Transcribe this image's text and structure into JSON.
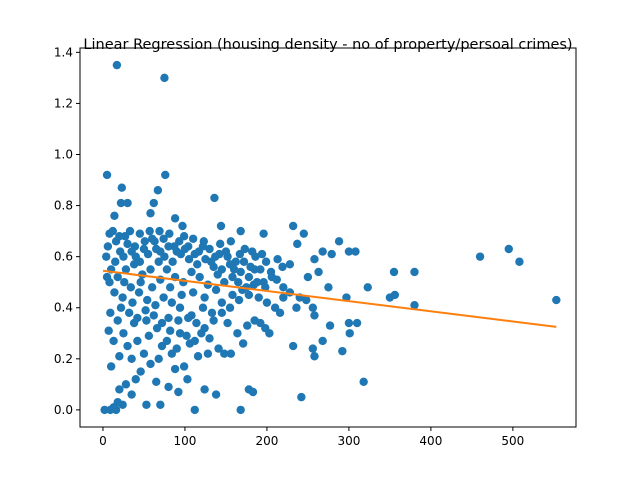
{
  "chart_data": {
    "type": "scatter",
    "title": "Linear Regression (housing density - no of property/persoal crimes)",
    "xlabel": "",
    "ylabel": "",
    "xlim": [
      -28,
      577
    ],
    "ylim": [
      -0.067,
      1.417
    ],
    "x_ticks": [
      0,
      100,
      200,
      300,
      400,
      500
    ],
    "y_ticks": [
      0.0,
      0.2,
      0.4,
      0.6,
      0.8,
      1.0,
      1.2,
      1.4
    ],
    "x_tick_labels": [
      "0",
      "100",
      "200",
      "300",
      "400",
      "500"
    ],
    "y_tick_labels": [
      "0.0",
      "0.2",
      "0.4",
      "0.6",
      "0.8",
      "1.0",
      "1.2",
      "1.4"
    ],
    "grid": false,
    "colors": {
      "points": "#1f77b4",
      "line": "#ff7f0e"
    },
    "series": [
      {
        "kind": "scatter",
        "points": [
          [
            17,
            1.35
          ],
          [
            75,
            1.3
          ],
          [
            5,
            0.92
          ],
          [
            76,
            0.92
          ],
          [
            23,
            0.87
          ],
          [
            67,
            0.86
          ],
          [
            136,
            0.83
          ],
          [
            22,
            0.81
          ],
          [
            30,
            0.81
          ],
          [
            62,
            0.81
          ],
          [
            58,
            0.77
          ],
          [
            14,
            0.76
          ],
          [
            88,
            0.75
          ],
          [
            97,
            0.72
          ],
          [
            144,
            0.72
          ],
          [
            232,
            0.72
          ],
          [
            168,
            0.7
          ],
          [
            245,
            0.69
          ],
          [
            196,
            0.69
          ],
          [
            237,
            0.65
          ],
          [
            288,
            0.66
          ],
          [
            300,
            0.62
          ],
          [
            308,
            0.62
          ],
          [
            279,
            0.61
          ],
          [
            268,
            0.62
          ],
          [
            258,
            0.59
          ],
          [
            213,
            0.59
          ],
          [
            228,
            0.57
          ],
          [
            219,
            0.56
          ],
          [
            250,
            0.52
          ],
          [
            263,
            0.54
          ],
          [
            275,
            0.48
          ],
          [
            355,
            0.54
          ],
          [
            380,
            0.54
          ],
          [
            460,
            0.6
          ],
          [
            495,
            0.63
          ],
          [
            508,
            0.58
          ],
          [
            553,
            0.43
          ],
          [
            380,
            0.41
          ],
          [
            350,
            0.44
          ],
          [
            323,
            0.48
          ],
          [
            356,
            0.45
          ],
          [
            297,
            0.44
          ],
          [
            310,
            0.34
          ],
          [
            300,
            0.34
          ],
          [
            277,
            0.33
          ],
          [
            268,
            0.27
          ],
          [
            258,
            0.37
          ],
          [
            256,
            0.24
          ],
          [
            292,
            0.23
          ],
          [
            301,
            0.3
          ],
          [
            258,
            0.21
          ],
          [
            232,
            0.25
          ],
          [
            203,
            0.3
          ],
          [
            198,
            0.32
          ],
          [
            176,
            0.33
          ],
          [
            164,
            0.3
          ],
          [
            152,
            0.34
          ],
          [
            141,
            0.24
          ],
          [
            128,
            0.22
          ],
          [
            116,
            0.21
          ],
          [
            106,
            0.26
          ],
          [
            148,
            0.22
          ],
          [
            156,
            0.22
          ],
          [
            171,
            0.26
          ],
          [
            192,
            0.34
          ],
          [
            216,
            0.38
          ],
          [
            236,
            0.4
          ],
          [
            185,
            0.35
          ],
          [
            178,
            0.08
          ],
          [
            183,
            0.07
          ],
          [
            168,
            0.0
          ],
          [
            242,
            0.05
          ],
          [
            318,
            0.11
          ],
          [
            112,
            0.0
          ],
          [
            138,
            0.06
          ],
          [
            124,
            0.08
          ],
          [
            103,
            0.12
          ],
          [
            92,
            0.07
          ],
          [
            70,
            0.02
          ],
          [
            53,
            0.02
          ],
          [
            35,
            0.06
          ],
          [
            24,
            0.02
          ],
          [
            18,
            0.03
          ],
          [
            13,
            0.01
          ],
          [
            9,
            0.0
          ],
          [
            16,
            0.0
          ],
          [
            2,
            0.0
          ],
          [
            20,
            0.08
          ],
          [
            28,
            0.1
          ],
          [
            40,
            0.12
          ],
          [
            46,
            0.15
          ],
          [
            58,
            0.18
          ],
          [
            65,
            0.11
          ],
          [
            80,
            0.09
          ],
          [
            88,
            0.16
          ],
          [
            99,
            0.17
          ],
          [
            84,
            0.22
          ],
          [
            72,
            0.25
          ],
          [
            50,
            0.22
          ],
          [
            35,
            0.2
          ],
          [
            20,
            0.21
          ],
          [
            10,
            0.17
          ],
          [
            13,
            0.27
          ],
          [
            25,
            0.3
          ],
          [
            38,
            0.34
          ],
          [
            53,
            0.35
          ],
          [
            66,
            0.32
          ],
          [
            80,
            0.36
          ],
          [
            94,
            0.3
          ],
          [
            108,
            0.37
          ],
          [
            122,
            0.4
          ],
          [
            133,
            0.38
          ],
          [
            145,
            0.42
          ],
          [
            158,
            0.45
          ],
          [
            170,
            0.47
          ],
          [
            184,
            0.49
          ],
          [
            196,
            0.5
          ],
          [
            206,
            0.52
          ],
          [
            220,
            0.48
          ],
          [
            9,
            0.38
          ],
          [
            7,
            0.31
          ],
          [
            5,
            0.52
          ],
          [
            4,
            0.6
          ],
          [
            6,
            0.64
          ],
          [
            8,
            0.69
          ],
          [
            12,
            0.7
          ],
          [
            16,
            0.66
          ],
          [
            21,
            0.62
          ],
          [
            27,
            0.68
          ],
          [
            33,
            0.7
          ],
          [
            39,
            0.64
          ],
          [
            45,
            0.69
          ],
          [
            51,
            0.66
          ],
          [
            57,
            0.7
          ],
          [
            63,
            0.66
          ],
          [
            69,
            0.7
          ],
          [
            74,
            0.67
          ],
          [
            81,
            0.69
          ],
          [
            87,
            0.64
          ],
          [
            93,
            0.66
          ],
          [
            99,
            0.68
          ],
          [
            104,
            0.64
          ],
          [
            110,
            0.67
          ],
          [
            117,
            0.62
          ],
          [
            123,
            0.66
          ],
          [
            130,
            0.63
          ],
          [
            137,
            0.6
          ],
          [
            143,
            0.65
          ],
          [
            150,
            0.62
          ],
          [
            156,
            0.66
          ],
          [
            162,
            0.58
          ],
          [
            167,
            0.61
          ],
          [
            173,
            0.63
          ],
          [
            180,
            0.56
          ],
          [
            186,
            0.6
          ],
          [
            192,
            0.55
          ],
          [
            199,
            0.58
          ],
          [
            205,
            0.54
          ],
          [
            212,
            0.51
          ],
          [
            220,
            0.44
          ],
          [
            228,
            0.46
          ],
          [
            240,
            0.44
          ],
          [
            248,
            0.43
          ],
          [
            256,
            0.4
          ],
          [
            210,
            0.4
          ],
          [
            200,
            0.42
          ],
          [
            190,
            0.44
          ],
          [
            178,
            0.45
          ],
          [
            166,
            0.43
          ],
          [
            155,
            0.4
          ],
          [
            145,
            0.38
          ],
          [
            135,
            0.35
          ],
          [
            124,
            0.32
          ],
          [
            114,
            0.34
          ],
          [
            104,
            0.36
          ],
          [
            94,
            0.4
          ],
          [
            84,
            0.42
          ],
          [
            74,
            0.44
          ],
          [
            64,
            0.41
          ],
          [
            54,
            0.43
          ],
          [
            44,
            0.46
          ],
          [
            34,
            0.48
          ],
          [
            24,
            0.44
          ],
          [
            14,
            0.46
          ],
          [
            8,
            0.5
          ],
          [
            18,
            0.52
          ],
          [
            28,
            0.55
          ],
          [
            38,
            0.57
          ],
          [
            48,
            0.53
          ],
          [
            58,
            0.55
          ],
          [
            68,
            0.58
          ],
          [
            78,
            0.55
          ],
          [
            88,
            0.52
          ],
          [
            98,
            0.5
          ],
          [
            108,
            0.54
          ],
          [
            118,
            0.52
          ],
          [
            128,
            0.49
          ],
          [
            138,
            0.47
          ],
          [
            148,
            0.5
          ],
          [
            158,
            0.52
          ],
          [
            168,
            0.54
          ],
          [
            178,
            0.52
          ],
          [
            188,
            0.5
          ],
          [
            198,
            0.48
          ],
          [
            15,
            0.58
          ],
          [
            25,
            0.6
          ],
          [
            35,
            0.62
          ],
          [
            45,
            0.58
          ],
          [
            55,
            0.61
          ],
          [
            65,
            0.63
          ],
          [
            75,
            0.6
          ],
          [
            85,
            0.58
          ],
          [
            95,
            0.61
          ],
          [
            105,
            0.59
          ],
          [
            115,
            0.57
          ],
          [
            125,
            0.59
          ],
          [
            135,
            0.56
          ],
          [
            145,
            0.55
          ],
          [
            155,
            0.57
          ],
          [
            165,
            0.5
          ],
          [
            175,
            0.48
          ],
          [
            185,
            0.55
          ],
          [
            22,
            0.4
          ],
          [
            32,
            0.38
          ],
          [
            42,
            0.36
          ],
          [
            52,
            0.39
          ],
          [
            62,
            0.37
          ],
          [
            72,
            0.34
          ],
          [
            82,
            0.31
          ],
          [
            92,
            0.35
          ],
          [
            102,
            0.29
          ],
          [
            112,
            0.27
          ],
          [
            120,
            0.3
          ],
          [
            130,
            0.28
          ],
          [
            30,
            0.25
          ],
          [
            42,
            0.27
          ],
          [
            56,
            0.29
          ],
          [
            68,
            0.2
          ],
          [
            78,
            0.27
          ],
          [
            90,
            0.24
          ],
          [
            18,
            0.35
          ],
          [
            26,
            0.5
          ],
          [
            36,
            0.42
          ],
          [
            46,
            0.5
          ],
          [
            60,
            0.48
          ],
          [
            70,
            0.51
          ],
          [
            82,
            0.48
          ],
          [
            96,
            0.45
          ],
          [
            110,
            0.46
          ],
          [
            124,
            0.44
          ],
          [
            140,
            0.53
          ],
          [
            152,
            0.6
          ],
          [
            10,
            0.55
          ],
          [
            20,
            0.68
          ],
          [
            30,
            0.65
          ],
          [
            40,
            0.6
          ],
          [
            50,
            0.63
          ],
          [
            60,
            0.67
          ],
          [
            70,
            0.62
          ],
          [
            80,
            0.64
          ],
          [
            90,
            0.62
          ],
          [
            100,
            0.63
          ],
          [
            112,
            0.61
          ],
          [
            122,
            0.64
          ],
          [
            132,
            0.58
          ],
          [
            142,
            0.61
          ],
          [
            160,
            0.55
          ],
          [
            172,
            0.58
          ],
          [
            182,
            0.62
          ],
          [
            194,
            0.61
          ]
        ]
      },
      {
        "kind": "line",
        "points": [
          [
            0,
            0.545
          ],
          [
            553,
            0.325
          ]
        ]
      }
    ]
  }
}
